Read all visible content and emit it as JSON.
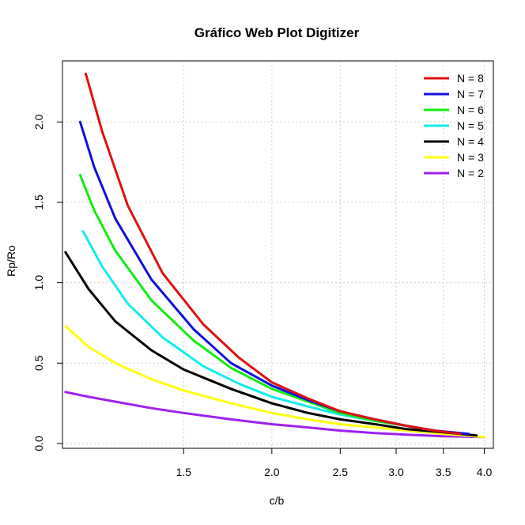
{
  "chart_data": {
    "type": "line",
    "title": "Gráfico Web Plot Digitizer",
    "xlabel": "c/b",
    "ylabel": "Rp/Ro",
    "x_scale": "log",
    "xlim": [
      1.01,
      4.12
    ],
    "ylim": [
      -0.03,
      2.38
    ],
    "x_ticks": [
      1.5,
      2.0,
      2.5,
      3.0,
      3.5,
      4.0
    ],
    "x_tick_labels": [
      "1.5",
      "2.0",
      "2.5",
      "3.0",
      "3.5",
      "4.0"
    ],
    "y_ticks": [
      0.0,
      0.5,
      1.0,
      1.5,
      2.0
    ],
    "y_tick_labels": [
      "0.0",
      "0.5",
      "1.0",
      "1.5",
      "2.0"
    ],
    "grid": true,
    "legend_position": "top-right",
    "series": [
      {
        "name": "N = 8",
        "color": "#e01010",
        "x": [
          1.09,
          1.15,
          1.25,
          1.4,
          1.6,
          1.8,
          2.0,
          2.25,
          2.5,
          2.8,
          3.1,
          3.4,
          3.7
        ],
        "y": [
          2.3,
          1.94,
          1.48,
          1.06,
          0.74,
          0.53,
          0.38,
          0.28,
          0.2,
          0.15,
          0.11,
          0.08,
          0.06
        ]
      },
      {
        "name": "N = 7",
        "color": "#1010dd",
        "x": [
          1.07,
          1.12,
          1.2,
          1.35,
          1.55,
          1.75,
          2.0,
          2.25,
          2.5,
          2.8,
          3.1,
          3.4,
          3.8
        ],
        "y": [
          2.0,
          1.72,
          1.4,
          1.02,
          0.71,
          0.5,
          0.36,
          0.27,
          0.2,
          0.15,
          0.11,
          0.08,
          0.06
        ]
      },
      {
        "name": "N = 6",
        "color": "#10ee10",
        "x": [
          1.07,
          1.12,
          1.2,
          1.35,
          1.55,
          1.75,
          2.0,
          2.25,
          2.5,
          2.8,
          3.1,
          3.4
        ],
        "y": [
          1.67,
          1.45,
          1.2,
          0.89,
          0.64,
          0.47,
          0.34,
          0.26,
          0.19,
          0.14,
          0.11,
          0.08
        ]
      },
      {
        "name": "N = 5",
        "color": "#10eeee",
        "x": [
          1.08,
          1.15,
          1.25,
          1.4,
          1.6,
          1.8,
          2.0,
          2.25,
          2.5,
          2.8,
          3.1,
          3.4
        ],
        "y": [
          1.32,
          1.1,
          0.87,
          0.66,
          0.48,
          0.37,
          0.29,
          0.23,
          0.18,
          0.14,
          0.11,
          0.08
        ]
      },
      {
        "name": "N = 4",
        "color": "#000000",
        "x": [
          1.02,
          1.1,
          1.2,
          1.35,
          1.5,
          1.75,
          2.0,
          2.25,
          2.5,
          2.8,
          3.1,
          3.5,
          3.9
        ],
        "y": [
          1.19,
          0.96,
          0.76,
          0.58,
          0.46,
          0.34,
          0.25,
          0.19,
          0.15,
          0.12,
          0.09,
          0.07,
          0.05
        ]
      },
      {
        "name": "N = 3",
        "color": "#ffff10",
        "x": [
          1.02,
          1.1,
          1.2,
          1.35,
          1.5,
          1.75,
          2.0,
          2.25,
          2.5,
          2.8,
          3.1,
          3.5,
          4.0
        ],
        "y": [
          0.73,
          0.6,
          0.5,
          0.4,
          0.33,
          0.25,
          0.19,
          0.15,
          0.12,
          0.1,
          0.08,
          0.06,
          0.04
        ]
      },
      {
        "name": "N = 2",
        "color": "#a020f0",
        "x": [
          1.02,
          1.1,
          1.2,
          1.35,
          1.5,
          1.75,
          2.0,
          2.25,
          2.5,
          2.8,
          3.1,
          3.5,
          4.0
        ],
        "y": [
          0.32,
          0.29,
          0.26,
          0.22,
          0.19,
          0.15,
          0.12,
          0.1,
          0.08,
          0.065,
          0.055,
          0.045,
          0.04
        ]
      }
    ]
  }
}
